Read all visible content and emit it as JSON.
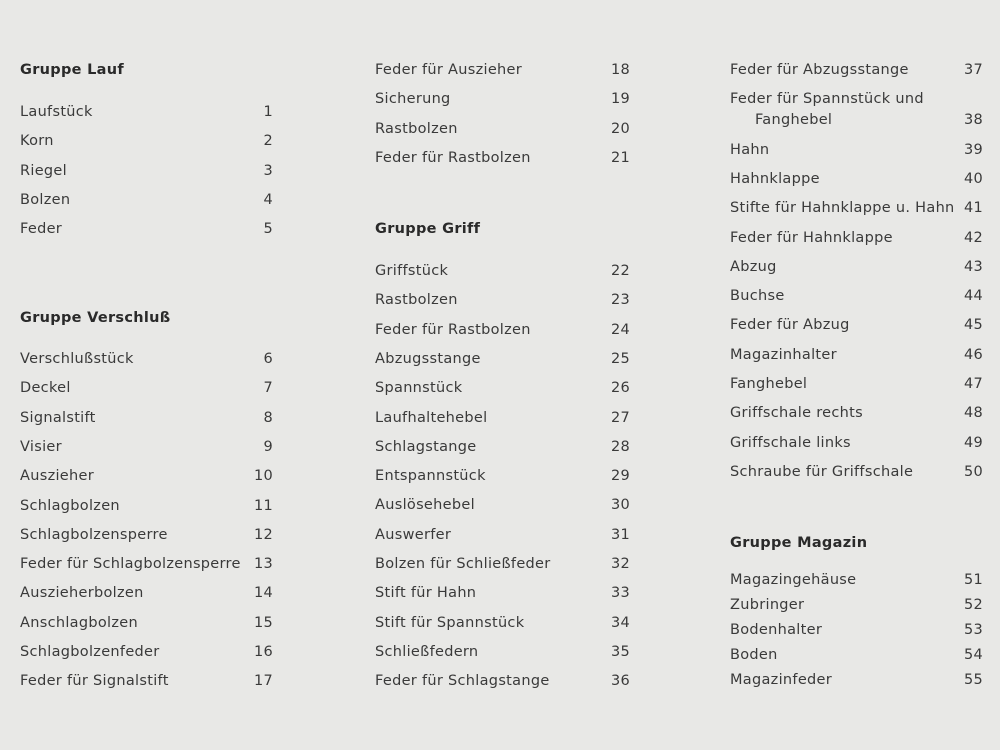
{
  "colors": {
    "background": "#e8e8e6",
    "text": "#3a3a3a"
  },
  "columns": [
    {
      "blocks": [
        {
          "heading": "Gruppe Lauf",
          "items": [
            {
              "name": "Laufstück",
              "number": "1"
            },
            {
              "name": "Korn",
              "number": "2"
            },
            {
              "name": "Riegel",
              "number": "3"
            },
            {
              "name": "Bolzen",
              "number": "4"
            },
            {
              "name": "Feder",
              "number": "5"
            }
          ]
        },
        {
          "heading": "Gruppe Verschluß",
          "items": [
            {
              "name": "Verschlußstück",
              "number": "6"
            },
            {
              "name": "Deckel",
              "number": "7"
            },
            {
              "name": "Signalstift",
              "number": "8"
            },
            {
              "name": "Visier",
              "number": "9"
            },
            {
              "name": "Auszieher",
              "number": "10"
            },
            {
              "name": "Schlagbolzen",
              "number": "11"
            },
            {
              "name": "Schlagbolzensperre",
              "number": "12"
            },
            {
              "name": "Feder für Schlagbolzensperre",
              "number": "13"
            },
            {
              "name": "Auszieherbolzen",
              "number": "14"
            },
            {
              "name": "Anschlagbolzen",
              "number": "15"
            },
            {
              "name": "Schlagbolzenfeder",
              "number": "16"
            },
            {
              "name": "Feder für Signalstift",
              "number": "17"
            }
          ]
        }
      ]
    },
    {
      "blocks": [
        {
          "heading": "",
          "items": [
            {
              "name": "Feder für Auszieher",
              "number": "18"
            },
            {
              "name": "Sicherung",
              "number": "19"
            },
            {
              "name": "Rastbolzen",
              "number": "20"
            },
            {
              "name": "Feder für Rastbolzen",
              "number": "21"
            }
          ]
        },
        {
          "heading": "Gruppe Griff",
          "items": [
            {
              "name": "Griffstück",
              "number": "22"
            },
            {
              "name": "Rastbolzen",
              "number": "23"
            },
            {
              "name": "Feder für Rastbolzen",
              "number": "24"
            },
            {
              "name": "Abzugsstange",
              "number": "25"
            },
            {
              "name": "Spannstück",
              "number": "26"
            },
            {
              "name": "Laufhaltehebel",
              "number": "27"
            },
            {
              "name": "Schlagstange",
              "number": "28"
            },
            {
              "name": "Entspannstück",
              "number": "29"
            },
            {
              "name": "Auslösehebel",
              "number": "30"
            },
            {
              "name": "Auswerfer",
              "number": "31"
            },
            {
              "name": "Bolzen für Schließfeder",
              "number": "32"
            },
            {
              "name": "Stift für Hahn",
              "number": "33"
            },
            {
              "name": "Stift für Spannstück",
              "number": "34"
            },
            {
              "name": "Schließfedern",
              "number": "35"
            },
            {
              "name": "Feder für Schlagstange",
              "number": "36"
            }
          ]
        }
      ]
    },
    {
      "blocks": [
        {
          "heading": "",
          "items": [
            {
              "name": "Feder für Abzugsstange",
              "number": "37"
            },
            {
              "name": "Feder für Spannstück und",
              "continuation": "Fanghebel",
              "number": "38"
            },
            {
              "name": "Hahn",
              "number": "39"
            },
            {
              "name": "Hahnklappe",
              "number": "40"
            },
            {
              "name": "Stifte für Hahnklappe u. Hahn",
              "number": "41"
            },
            {
              "name": "Feder für Hahnklappe",
              "number": "42"
            },
            {
              "name": "Abzug",
              "number": "43"
            },
            {
              "name": "Buchse",
              "number": "44"
            },
            {
              "name": "Feder für Abzug",
              "number": "45"
            },
            {
              "name": "Magazinhalter",
              "number": "46"
            },
            {
              "name": "Fanghebel",
              "number": "47"
            },
            {
              "name": "Griffschale rechts",
              "number": "48"
            },
            {
              "name": "Griffschale links",
              "number": "49"
            },
            {
              "name": "Schraube für Griffschale",
              "number": "50"
            }
          ]
        },
        {
          "heading": "Gruppe Magazin",
          "items": [
            {
              "name": "Magazingehäuse",
              "number": "51"
            },
            {
              "name": "Zubringer",
              "number": "52"
            },
            {
              "name": "Bodenhalter",
              "number": "53"
            },
            {
              "name": "Boden",
              "number": "54"
            },
            {
              "name": "Magazinfeder",
              "number": "55"
            }
          ]
        }
      ]
    }
  ]
}
